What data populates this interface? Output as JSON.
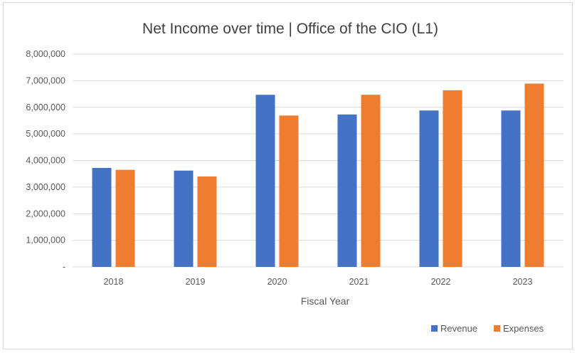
{
  "chart_data": {
    "type": "bar",
    "title": "Net Income over time | Office of the CIO (L1)",
    "xlabel": "Fiscal Year",
    "ylabel": "",
    "categories": [
      "2018",
      "2019",
      "2020",
      "2021",
      "2022",
      "2023"
    ],
    "series": [
      {
        "name": "Revenue",
        "color": "#4472C4",
        "values": [
          3720000,
          3620000,
          6470000,
          5730000,
          5880000,
          5880000
        ]
      },
      {
        "name": "Expenses",
        "color": "#ED7D31",
        "values": [
          3650000,
          3400000,
          5690000,
          6470000,
          6640000,
          6890000
        ]
      }
    ],
    "ylim": [
      0,
      8000000
    ],
    "yticks": [
      "-",
      "1,000,000",
      "2,000,000",
      "3,000,000",
      "4,000,000",
      "5,000,000",
      "6,000,000",
      "7,000,000",
      "8,000,000"
    ],
    "grid": true,
    "legend_position": "bottom-right"
  }
}
